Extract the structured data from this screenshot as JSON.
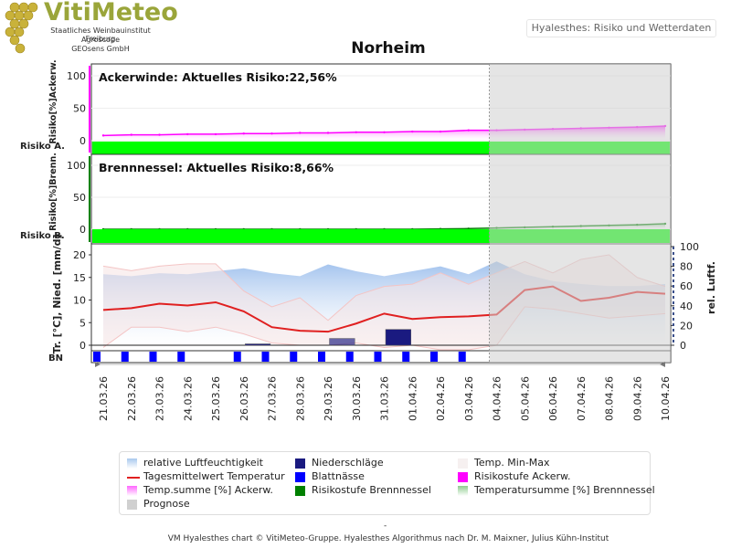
{
  "logo": {
    "title": "VitiMeteo",
    "line1": "Staatliches Weinbauinstitut Freiburg",
    "line2": "Agroscope",
    "line3": "GEOsens GmbH"
  },
  "header_tab": "Hyalesthes: Risiko und Wetterdaten",
  "footer": {
    "dash": "-",
    "credit": "VM Hyalesthes chart © VitiMeteo-Gruppe. Hyalesthes Algorithmus nach Dr. M. Maixner, Julius Kühn-Institut"
  },
  "colors": {
    "ackerwinde": "#ff00ff",
    "brennnessel": "#008000",
    "risk_bar": "#00ff00",
    "temp_line": "#e02020",
    "humidity": "#a9c8ee",
    "precip": "#1a1a80",
    "blattnaesse": "#0000ff",
    "minmax": "#f4c4c4",
    "prognose": "#d0d0d0"
  },
  "chart_data": [
    {
      "type": "area",
      "title": "Norheim",
      "panel_label": "Ackerwinde:  Aktuelles Risiko:22,56%",
      "ylabel": "Risiko[%]Ackerw.",
      "risk_row_label": "Risiko A.",
      "yticks": [
        0,
        50,
        100
      ],
      "ylim": [
        -10,
        105
      ],
      "x": [
        "21.03.26",
        "22.03.26",
        "23.03.26",
        "24.03.26",
        "25.03.26",
        "26.03.26",
        "27.03.26",
        "28.03.26",
        "29.03.26",
        "30.03.26",
        "31.03.26",
        "01.04.26",
        "02.04.26",
        "03.04.26",
        "04.04.26",
        "05.04.26",
        "06.04.26",
        "07.04.26",
        "08.04.26",
        "09.04.26",
        "10.04.26"
      ],
      "series": [
        {
          "name": "Temp.summe [%] Ackerw.",
          "values": [
            8,
            9,
            9,
            10,
            10,
            11,
            11,
            12,
            12,
            13,
            13,
            14,
            14,
            16,
            16,
            17,
            18,
            19,
            20,
            21,
            22.56
          ]
        }
      ],
      "risk_level": "niedrig",
      "prognose_from": "04.04.26"
    },
    {
      "type": "area",
      "panel_label": "Brennnessel:  Aktuelles Risiko:8,66%",
      "ylabel": "Risiko[%]Brenn.",
      "risk_row_label": "Risiko B.",
      "yticks": [
        0,
        50,
        100
      ],
      "ylim": [
        -10,
        105
      ],
      "x": [
        "21.03.26",
        "22.03.26",
        "23.03.26",
        "24.03.26",
        "25.03.26",
        "26.03.26",
        "27.03.26",
        "28.03.26",
        "29.03.26",
        "30.03.26",
        "31.03.26",
        "01.04.26",
        "02.04.26",
        "03.04.26",
        "04.04.26",
        "05.04.26",
        "06.04.26",
        "07.04.26",
        "08.04.26",
        "09.04.26",
        "10.04.26"
      ],
      "series": [
        {
          "name": "Temperatursumme [%] Brennnessel",
          "values": [
            0,
            0,
            0,
            0,
            0,
            0,
            0,
            0,
            0,
            0,
            0,
            0,
            0.5,
            1,
            2,
            3,
            4,
            5,
            6,
            7,
            8.66
          ]
        }
      ],
      "risk_level": "niedrig",
      "prognose_from": "04.04.26"
    },
    {
      "type": "line",
      "ylabel": "Tr. [°C], Nied. [mm/d]",
      "y2label": "rel. Luftf.",
      "row_label": "BN",
      "yticks": [
        0,
        5,
        10,
        15,
        20
      ],
      "ylim": [
        -1,
        22
      ],
      "y2ticks": [
        0,
        20,
        40,
        60,
        80,
        100
      ],
      "y2lim": [
        -4.5,
        100
      ],
      "x": [
        "21.03.26",
        "22.03.26",
        "23.03.26",
        "24.03.26",
        "25.03.26",
        "26.03.26",
        "27.03.26",
        "28.03.26",
        "29.03.26",
        "30.03.26",
        "31.03.26",
        "01.04.26",
        "02.04.26",
        "03.04.26",
        "04.04.26",
        "05.04.26",
        "06.04.26",
        "07.04.26",
        "08.04.26",
        "09.04.26",
        "10.04.26"
      ],
      "series": [
        {
          "name": "Tagesmittelwert Temperatur",
          "axis": "left",
          "values": [
            7.8,
            8.2,
            9.2,
            8.8,
            9.5,
            7.5,
            4.0,
            3.2,
            3.0,
            4.8,
            7.0,
            5.8,
            6.2,
            6.4,
            6.8,
            12.2,
            13.0,
            9.8,
            10.5,
            11.8,
            11.4
          ]
        },
        {
          "name": "Temp. Min-Max max",
          "axis": "left",
          "values": [
            17.5,
            16.5,
            17.5,
            18.0,
            18.0,
            12.0,
            8.5,
            10.5,
            5.5,
            11.0,
            13.0,
            13.5,
            16.0,
            13.5,
            16.0,
            18.5,
            16.0,
            19.0,
            20.0,
            15.0,
            13.0
          ]
        },
        {
          "name": "Temp. Min-Max min",
          "axis": "left",
          "values": [
            -0.5,
            4.0,
            4.0,
            3.0,
            4.0,
            2.5,
            0.5,
            0.0,
            0.0,
            0.5,
            -0.5,
            0.0,
            -1.0,
            -1.0,
            0.0,
            8.5,
            8.0,
            7.0,
            6.0,
            6.5,
            7.0
          ]
        },
        {
          "name": "relative Luftfeuchtigkeit",
          "axis": "right",
          "values": [
            72,
            70,
            73,
            72,
            75,
            78,
            73,
            70,
            82,
            75,
            70,
            75,
            80,
            72,
            85,
            72,
            65,
            62,
            60,
            60,
            62
          ]
        },
        {
          "name": "Niederschläge",
          "axis": "left",
          "values": [
            0,
            0,
            0,
            0,
            0,
            0.3,
            0,
            0,
            1.5,
            0,
            3.5,
            0,
            0,
            0,
            0,
            0,
            0,
            0,
            0,
            0,
            0
          ]
        }
      ],
      "blattnaesse_days": [
        0,
        1,
        2,
        3,
        5,
        6,
        7,
        8,
        9,
        10,
        11,
        12,
        13
      ],
      "prognose_from": "04.04.26"
    }
  ],
  "legend": {
    "items": [
      {
        "label": "relative Luftfeuchtigkeit",
        "color": "#a9c8ee",
        "style": "gradient"
      },
      {
        "label": "Niederschläge",
        "color": "#1a1a80",
        "style": "solid"
      },
      {
        "label": "Temp. Min-Max",
        "color": "#f6f0f0",
        "style": "solid"
      },
      {
        "label": "Tagesmittelwert Temperatur",
        "color": "#e02020",
        "style": "line"
      },
      {
        "label": "Blattnässe",
        "color": "#0000ff",
        "style": "solid"
      },
      {
        "label": "Risikostufe Ackerw.",
        "color": "#ff00ff",
        "style": "solid"
      },
      {
        "label": "Temp.summe [%] Ackerw.",
        "color": "#ff66ff",
        "style": "gradient"
      },
      {
        "label": "Risikostufe Brennnessel",
        "color": "#008000",
        "style": "solid"
      },
      {
        "label": "Temperatursumme [%] Brennnessel",
        "color": "#8fcc8f",
        "style": "gradient"
      },
      {
        "label": "Prognose",
        "color": "#d0d0d0",
        "style": "solid"
      }
    ]
  }
}
